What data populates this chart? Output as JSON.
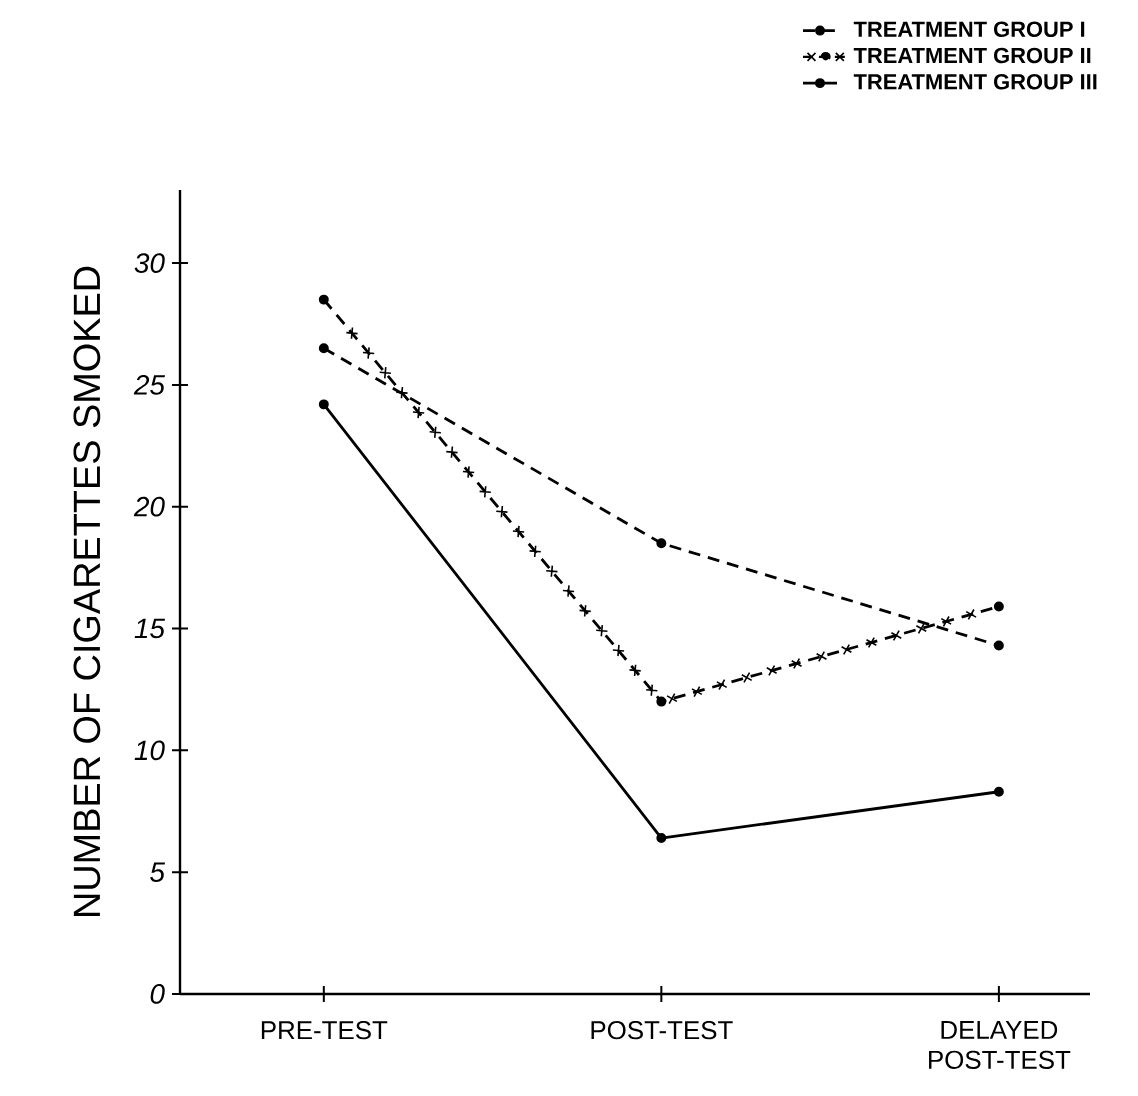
{
  "chart_data": {
    "type": "line",
    "ylabel": "NUMBER OF CIGARETTES SMOKED",
    "categories": [
      "PRE-TEST",
      "POST-TEST",
      "DELAYED POST-TEST"
    ],
    "series": [
      {
        "name": "TREATMENT GROUP I",
        "color": "#000000",
        "line_style": "dashed",
        "marker": "circle",
        "values": [
          26.5,
          18.5,
          14.3
        ]
      },
      {
        "name": "TREATMENT GROUP II",
        "color": "#000000",
        "line_style": "dashed",
        "marker": "cross",
        "values": [
          28.5,
          12.0,
          15.9
        ]
      },
      {
        "name": "TREATMENT GROUP III",
        "color": "#000000",
        "line_style": "solid",
        "marker": "circle",
        "values": [
          24.2,
          6.4,
          8.3
        ]
      }
    ],
    "ylim": [
      0,
      33
    ],
    "yticks": [
      0,
      5,
      10,
      15,
      20,
      25,
      30
    ],
    "grid": false,
    "legend": "top right"
  }
}
